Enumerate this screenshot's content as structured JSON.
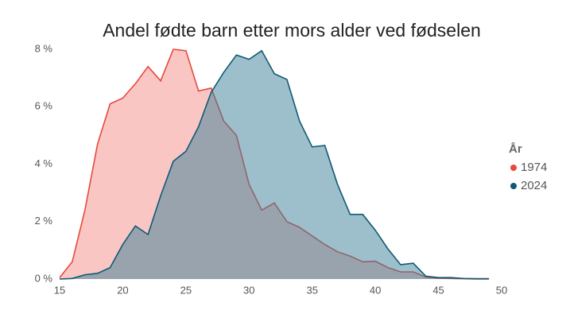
{
  "chart_data": {
    "type": "area",
    "title": "Andel fødte barn etter mors alder ved fødselen",
    "x": [
      15,
      16,
      17,
      18,
      19,
      20,
      21,
      22,
      23,
      24,
      25,
      26,
      27,
      28,
      29,
      30,
      31,
      32,
      33,
      34,
      35,
      36,
      37,
      38,
      39,
      40,
      41,
      42,
      43,
      44,
      45,
      46,
      47,
      48,
      49
    ],
    "xlim": [
      15,
      50
    ],
    "xticks": [
      15,
      20,
      25,
      30,
      35,
      40,
      45,
      50
    ],
    "ylim": [
      0,
      8
    ],
    "yticks": [
      {
        "value": 0,
        "label": "0 %"
      },
      {
        "value": 2,
        "label": "2 %"
      },
      {
        "value": 4,
        "label": "4 %"
      },
      {
        "value": 6,
        "label": "6 %"
      },
      {
        "value": 8,
        "label": "8 %"
      }
    ],
    "legend_title": "År",
    "series": [
      {
        "name": "1974",
        "color": "#e8483e",
        "fill": "#f38d8a",
        "values": [
          0.05,
          0.6,
          2.4,
          4.7,
          6.1,
          6.3,
          6.8,
          7.4,
          6.9,
          8.0,
          7.95,
          6.55,
          6.65,
          5.5,
          5.0,
          3.3,
          2.4,
          2.65,
          2.0,
          1.8,
          1.5,
          1.2,
          0.95,
          0.8,
          0.6,
          0.62,
          0.4,
          0.25,
          0.25,
          0.07,
          0.03,
          0.02,
          0.01,
          0.0,
          0.0
        ]
      },
      {
        "name": "2024",
        "color": "#0e5a74",
        "fill": "#3a7f97",
        "values": [
          0.0,
          0.02,
          0.15,
          0.2,
          0.4,
          1.2,
          1.85,
          1.55,
          2.9,
          4.1,
          4.45,
          5.3,
          6.5,
          7.2,
          7.8,
          7.65,
          7.95,
          7.15,
          6.95,
          5.5,
          4.6,
          4.65,
          3.3,
          2.25,
          2.25,
          1.7,
          1.05,
          0.5,
          0.55,
          0.1,
          0.05,
          0.05,
          0.02,
          0.01,
          0.01
        ]
      }
    ]
  }
}
